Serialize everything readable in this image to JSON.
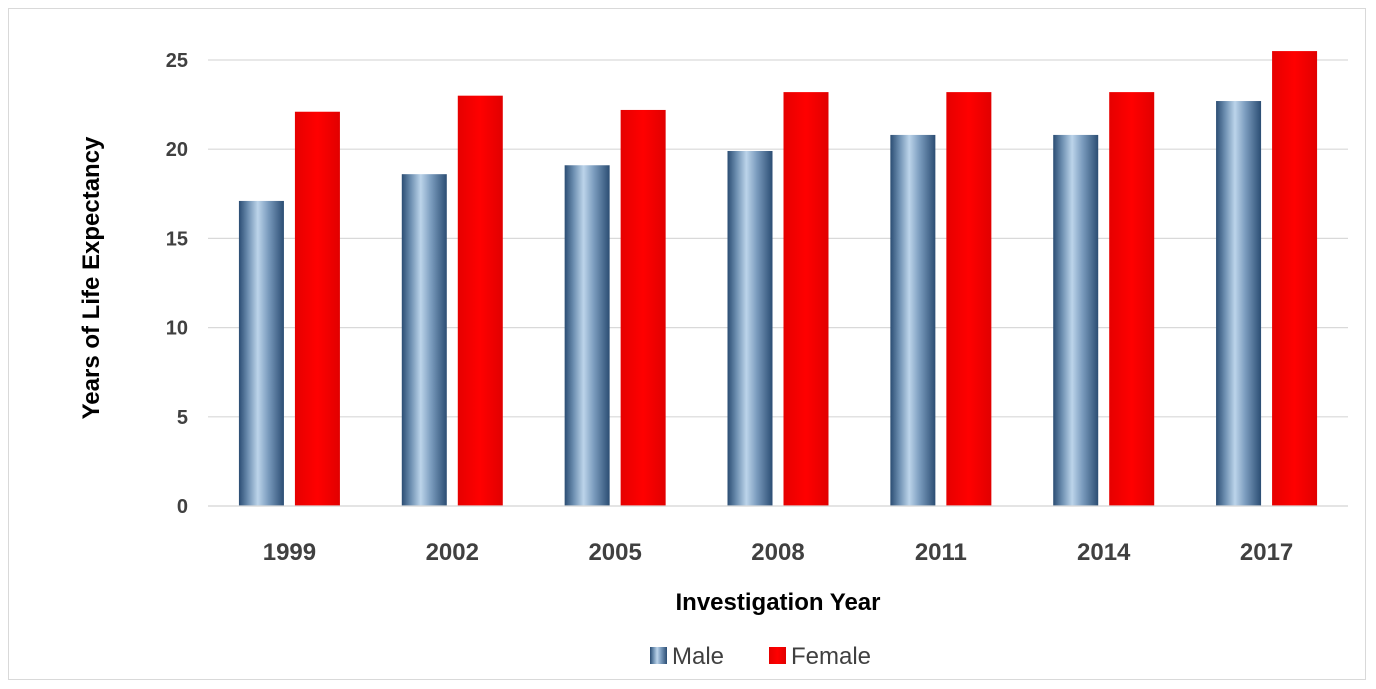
{
  "chart_data": {
    "type": "bar",
    "categories": [
      "1999",
      "2002",
      "2005",
      "2008",
      "2011",
      "2014",
      "2017"
    ],
    "series": [
      {
        "name": "Male",
        "values": [
          17.1,
          18.6,
          19.1,
          19.9,
          20.8,
          20.8,
          22.7
        ],
        "color": "#2e5177"
      },
      {
        "name": "Female",
        "values": [
          22.1,
          23.0,
          22.2,
          23.2,
          23.2,
          23.2,
          25.5
        ],
        "color": "#ff0000"
      }
    ],
    "title": "",
    "xlabel": "Investigation Year",
    "ylabel": "Years of Life Expectancy",
    "ylim": [
      0,
      25
    ],
    "yticks": [
      0,
      5,
      10,
      15,
      20,
      25
    ],
    "grid": true,
    "legend_position": "bottom"
  }
}
